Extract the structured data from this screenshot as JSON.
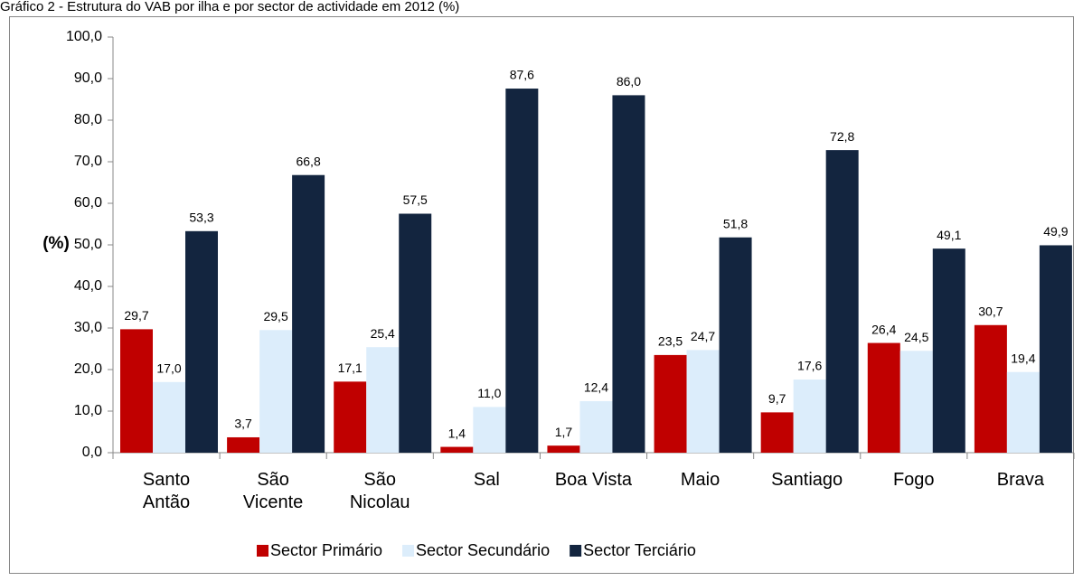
{
  "chart_data": {
    "type": "bar",
    "title": "Gráfico 2 - Estrutura do VAB por ilha e por sector de actividade em 2012 (%)",
    "y_label": "(%)",
    "categories": [
      "Santo\nAntão",
      "São\nVicente",
      "São\nNicolau",
      "Sal",
      "Boa Vista",
      "Maio",
      "Santiago",
      "Fogo",
      "Brava"
    ],
    "series": [
      {
        "name": "Sector Primário",
        "color": "#c00000",
        "values": [
          29.7,
          3.7,
          17.1,
          1.4,
          1.7,
          23.5,
          9.7,
          26.4,
          30.7
        ],
        "value_labels": [
          "29,7",
          "3,7",
          "17,1",
          "1,4",
          "1,7",
          "23,5",
          "9,7",
          "26,4",
          "30,7"
        ]
      },
      {
        "name": "Sector Secundário",
        "color": "#dcedfb",
        "values": [
          17.0,
          29.5,
          25.4,
          11.0,
          12.4,
          24.7,
          17.6,
          24.5,
          19.4
        ],
        "value_labels": [
          "17,0",
          "29,5",
          "25,4",
          "11,0",
          "12,4",
          "24,7",
          "17,6",
          "24,5",
          "19,4"
        ]
      },
      {
        "name": "Sector Terciário",
        "color": "#13253f",
        "values": [
          53.3,
          66.8,
          57.5,
          87.6,
          86.0,
          51.8,
          72.8,
          49.1,
          49.9
        ],
        "value_labels": [
          "53,3",
          "66,8",
          "57,5",
          "87,6",
          "86,0",
          "51,8",
          "72,8",
          "49,1",
          "49,9"
        ]
      }
    ],
    "ylim": [
      0,
      100
    ],
    "yticks": [
      {
        "value": 0,
        "label": "0,0"
      },
      {
        "value": 10,
        "label": "10,0"
      },
      {
        "value": 20,
        "label": "20,0"
      },
      {
        "value": 30,
        "label": "30,0"
      },
      {
        "value": 40,
        "label": "40,0"
      },
      {
        "value": 50,
        "label": "50,0"
      },
      {
        "value": 60,
        "label": "60,0"
      },
      {
        "value": 70,
        "label": "70,0"
      },
      {
        "value": 80,
        "label": "80,0"
      },
      {
        "value": 90,
        "label": "90,0"
      },
      {
        "value": 100,
        "label": "100,0"
      }
    ],
    "legend": "bottom"
  }
}
